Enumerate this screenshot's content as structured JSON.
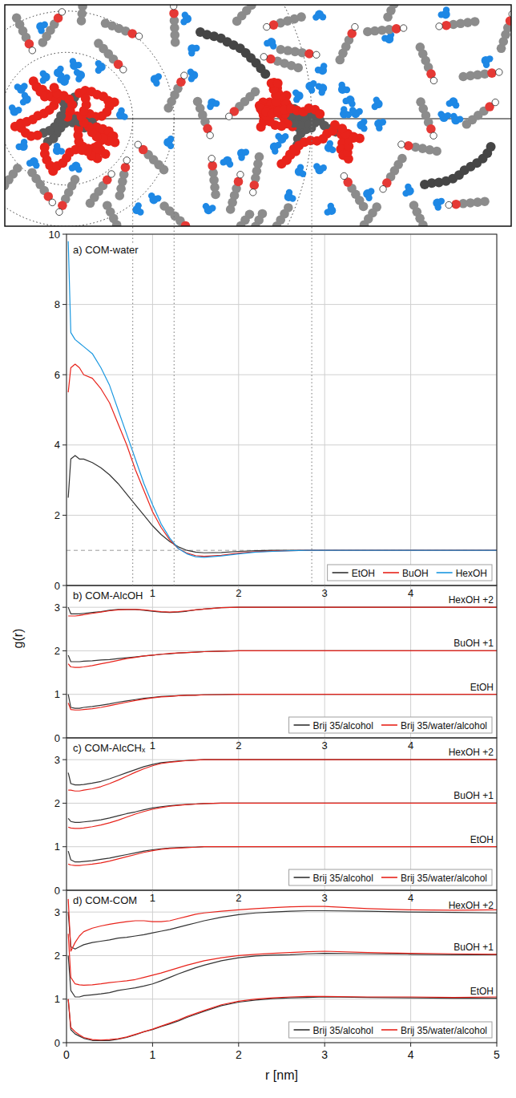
{
  "chart_data": {
    "type": "line",
    "x_label": "r [nm]",
    "y_label": "g(r)",
    "xlim": [
      0,
      5
    ],
    "xticks": [
      0,
      1,
      2,
      3,
      4,
      5
    ],
    "grid": true,
    "guide_lines": [
      0.77,
      1.25,
      2.85
    ],
    "x": [
      0.02,
      0.05,
      0.1,
      0.15,
      0.2,
      0.3,
      0.4,
      0.5,
      0.6,
      0.7,
      0.8,
      0.9,
      1.0,
      1.1,
      1.2,
      1.3,
      1.4,
      1.5,
      1.6,
      1.8,
      2.0,
      2.2,
      2.4,
      2.6,
      2.8,
      3.0,
      3.5,
      4.0,
      4.5,
      5.0
    ],
    "panels": [
      {
        "title": "a) COM-water",
        "ylim": [
          0,
          10
        ],
        "yticks": [
          0,
          2,
          4,
          6,
          8,
          10
        ],
        "reference_y": 1,
        "legend": "bottom-right",
        "series": [
          {
            "name": "EtOH",
            "color": "#333333",
            "values": [
              2.5,
              3.6,
              3.7,
              3.6,
              3.6,
              3.5,
              3.35,
              3.15,
              2.9,
              2.6,
              2.3,
              2.0,
              1.7,
              1.45,
              1.25,
              1.1,
              1.0,
              0.95,
              0.93,
              0.94,
              0.97,
              0.99,
              1.0,
              1.0,
              1.0,
              1.0,
              1.0,
              1.0,
              1.0,
              1.0
            ]
          },
          {
            "name": "BuOH",
            "color": "#e8231b",
            "values": [
              5.5,
              6.2,
              6.3,
              6.2,
              6.0,
              5.9,
              5.6,
              5.2,
              4.6,
              4.0,
              3.3,
              2.7,
              2.1,
              1.65,
              1.3,
              1.05,
              0.92,
              0.85,
              0.83,
              0.86,
              0.92,
              0.96,
              0.98,
              0.99,
              1.0,
              1.0,
              1.0,
              1.0,
              1.0,
              1.0
            ]
          },
          {
            "name": "HexOH",
            "color": "#1b98e0",
            "values": [
              9.8,
              7.2,
              7.0,
              6.9,
              6.8,
              6.6,
              6.2,
              5.7,
              5.0,
              4.3,
              3.6,
              2.9,
              2.3,
              1.75,
              1.35,
              1.05,
              0.9,
              0.82,
              0.8,
              0.84,
              0.9,
              0.95,
              0.97,
              0.99,
              1.0,
              1.0,
              1.0,
              1.0,
              1.0,
              1.0
            ]
          }
        ]
      },
      {
        "title": "b) COM-AlcOH",
        "ylim": [
          0,
          3.5
        ],
        "yticks": [
          0,
          1,
          2,
          3
        ],
        "xticks": [
          1,
          2,
          3,
          4
        ],
        "legend": "bottom-right",
        "annotations": [
          "EtOH",
          "BuOH +1",
          "HexOH +2"
        ],
        "series": [
          {
            "name": "Brij 35/alcohol",
            "color": "#333333",
            "values": [
              1.0,
              0.7,
              0.68,
              0.68,
              0.7,
              0.72,
              0.75,
              0.78,
              0.82,
              0.85,
              0.88,
              0.91,
              0.93,
              0.95,
              0.96,
              0.97,
              0.98,
              0.985,
              0.99,
              0.995,
              1.0,
              1.0,
              1.0,
              1.0,
              1.0,
              1.0,
              1.0,
              1.0,
              1.0,
              1.0
            ]
          },
          {
            "name": "Brij 35/water/alcohol",
            "color": "#e8231b",
            "values": [
              0.8,
              0.65,
              0.64,
              0.64,
              0.65,
              0.67,
              0.7,
              0.74,
              0.78,
              0.82,
              0.86,
              0.89,
              0.92,
              0.94,
              0.95,
              0.97,
              0.98,
              0.98,
              0.99,
              0.995,
              1.0,
              1.0,
              1.0,
              1.0,
              1.0,
              1.0,
              1.0,
              1.0,
              1.0,
              1.0
            ]
          },
          {
            "name": "Brij 35/alcohol",
            "color": "#333333",
            "values": [
              1.9,
              1.75,
              1.75,
              1.75,
              1.76,
              1.77,
              1.79,
              1.8,
              1.82,
              1.84,
              1.86,
              1.88,
              1.9,
              1.92,
              1.93,
              1.95,
              1.96,
              1.97,
              1.98,
              1.99,
              2.0,
              2.0,
              2.0,
              2.0,
              2.0,
              2.0,
              2.0,
              2.0,
              2.0,
              2.0
            ]
          },
          {
            "name": "Brij 35/water/alcohol",
            "color": "#e8231b",
            "values": [
              1.7,
              1.63,
              1.62,
              1.62,
              1.63,
              1.66,
              1.7,
              1.74,
              1.78,
              1.82,
              1.85,
              1.88,
              1.9,
              1.92,
              1.94,
              1.95,
              1.96,
              1.97,
              1.98,
              1.99,
              2.0,
              2.0,
              2.0,
              2.0,
              2.0,
              2.0,
              2.0,
              2.0,
              2.0,
              2.0
            ]
          },
          {
            "name": "Brij 35/alcohol",
            "color": "#333333",
            "values": [
              3.0,
              2.85,
              2.85,
              2.85,
              2.86,
              2.88,
              2.9,
              2.93,
              2.95,
              2.95,
              2.95,
              2.93,
              2.91,
              2.89,
              2.88,
              2.89,
              2.91,
              2.94,
              2.96,
              2.99,
              3.0,
              3.0,
              3.0,
              3.0,
              3.0,
              3.0,
              3.0,
              3.0,
              3.0,
              3.0
            ]
          },
          {
            "name": "Brij 35/water/alcohol",
            "color": "#e8231b",
            "values": [
              2.8,
              2.8,
              2.8,
              2.81,
              2.83,
              2.86,
              2.89,
              2.92,
              2.94,
              2.95,
              2.95,
              2.94,
              2.92,
              2.9,
              2.89,
              2.9,
              2.92,
              2.94,
              2.96,
              2.99,
              3.0,
              3.0,
              3.0,
              3.0,
              3.0,
              3.0,
              3.0,
              3.0,
              3.0,
              3.0
            ]
          }
        ]
      },
      {
        "title": "c) COM-AlcCHₓ",
        "ylim": [
          0,
          3.5
        ],
        "yticks": [
          0,
          1,
          2,
          3
        ],
        "xticks": [
          1,
          2,
          3,
          4
        ],
        "legend": "bottom-right",
        "annotations": [
          "EtOH",
          "BuOH +1",
          "HexOH +2"
        ],
        "series": [
          {
            "name": "Brij 35/alcohol",
            "color": "#333333",
            "values": [
              0.9,
              0.7,
              0.65,
              0.65,
              0.66,
              0.68,
              0.71,
              0.74,
              0.78,
              0.82,
              0.86,
              0.9,
              0.93,
              0.95,
              0.97,
              0.98,
              0.99,
              0.99,
              1.0,
              1.0,
              1.0,
              1.0,
              1.0,
              1.0,
              1.0,
              1.0,
              1.0,
              1.0,
              1.0,
              1.0
            ]
          },
          {
            "name": "Brij 35/water/alcohol",
            "color": "#e8231b",
            "values": [
              0.6,
              0.58,
              0.57,
              0.57,
              0.58,
              0.6,
              0.63,
              0.67,
              0.72,
              0.77,
              0.82,
              0.87,
              0.91,
              0.94,
              0.96,
              0.97,
              0.98,
              0.99,
              1.0,
              1.0,
              1.0,
              1.0,
              1.0,
              1.0,
              1.0,
              1.0,
              1.0,
              1.0,
              1.0,
              1.0
            ]
          },
          {
            "name": "Brij 35/alcohol",
            "color": "#333333",
            "values": [
              1.65,
              1.58,
              1.56,
              1.56,
              1.57,
              1.59,
              1.62,
              1.66,
              1.71,
              1.76,
              1.8,
              1.85,
              1.89,
              1.92,
              1.94,
              1.96,
              1.97,
              1.98,
              1.99,
              2.0,
              2.0,
              2.0,
              2.0,
              2.0,
              2.0,
              2.0,
              2.0,
              2.0,
              2.0,
              2.0
            ]
          },
          {
            "name": "Brij 35/water/alcohol",
            "color": "#e8231b",
            "values": [
              1.45,
              1.43,
              1.42,
              1.42,
              1.43,
              1.46,
              1.5,
              1.55,
              1.61,
              1.68,
              1.75,
              1.81,
              1.86,
              1.9,
              1.93,
              1.95,
              1.97,
              1.98,
              1.99,
              2.0,
              2.0,
              2.0,
              2.0,
              2.0,
              2.0,
              2.0,
              2.0,
              2.0,
              2.0,
              2.0
            ]
          },
          {
            "name": "Brij 35/alcohol",
            "color": "#333333",
            "values": [
              2.7,
              2.45,
              2.42,
              2.42,
              2.43,
              2.46,
              2.5,
              2.56,
              2.63,
              2.7,
              2.77,
              2.84,
              2.89,
              2.93,
              2.95,
              2.97,
              2.98,
              2.99,
              3.0,
              3.0,
              3.0,
              3.0,
              3.0,
              3.0,
              3.0,
              3.0,
              3.0,
              3.0,
              3.0,
              3.0
            ]
          },
          {
            "name": "Brij 35/water/alcohol",
            "color": "#e8231b",
            "values": [
              2.3,
              2.3,
              2.28,
              2.28,
              2.3,
              2.33,
              2.38,
              2.45,
              2.53,
              2.62,
              2.71,
              2.79,
              2.86,
              2.91,
              2.94,
              2.96,
              2.98,
              2.99,
              3.0,
              3.0,
              3.0,
              3.0,
              3.0,
              3.0,
              3.0,
              3.0,
              3.0,
              3.0,
              3.0,
              3.0
            ]
          }
        ]
      },
      {
        "title": "d) COM-COM",
        "ylim": [
          0,
          3.5
        ],
        "yticks": [
          0,
          1,
          2,
          3
        ],
        "xticks": [
          1,
          2,
          3,
          4
        ],
        "legend": "bottom-right",
        "annotations": [
          "EtOH",
          "BuOH +1",
          "HexOH +2"
        ],
        "series": [
          {
            "name": "Brij 35/alcohol",
            "color": "#333333",
            "values": [
              1.0,
              0.3,
              0.2,
              0.15,
              0.1,
              0.05,
              0.05,
              0.05,
              0.08,
              0.12,
              0.18,
              0.25,
              0.3,
              0.37,
              0.43,
              0.5,
              0.58,
              0.65,
              0.72,
              0.85,
              0.93,
              0.98,
              1.01,
              1.03,
              1.04,
              1.05,
              1.04,
              1.03,
              1.02,
              1.02
            ]
          },
          {
            "name": "Brij 35/water/alcohol",
            "color": "#e8231b",
            "values": [
              1.0,
              0.35,
              0.25,
              0.18,
              0.12,
              0.07,
              0.06,
              0.07,
              0.09,
              0.13,
              0.19,
              0.25,
              0.31,
              0.38,
              0.45,
              0.52,
              0.6,
              0.67,
              0.74,
              0.87,
              0.95,
              1.0,
              1.03,
              1.05,
              1.06,
              1.06,
              1.05,
              1.05,
              1.04,
              1.05
            ]
          },
          {
            "name": "Brij 35/alcohol",
            "color": "#333333",
            "values": [
              2.0,
              1.2,
              1.05,
              1.05,
              1.08,
              1.1,
              1.12,
              1.15,
              1.2,
              1.23,
              1.26,
              1.3,
              1.35,
              1.42,
              1.5,
              1.58,
              1.65,
              1.72,
              1.78,
              1.88,
              1.95,
              1.99,
              2.01,
              2.02,
              2.04,
              2.05,
              2.04,
              2.03,
              2.02,
              2.02
            ]
          },
          {
            "name": "Brij 35/water/alcohol",
            "color": "#e8231b",
            "values": [
              2.5,
              1.5,
              1.35,
              1.33,
              1.32,
              1.33,
              1.35,
              1.38,
              1.4,
              1.42,
              1.45,
              1.5,
              1.55,
              1.6,
              1.66,
              1.72,
              1.78,
              1.83,
              1.88,
              1.95,
              2.0,
              2.03,
              2.05,
              2.07,
              2.09,
              2.1,
              2.07,
              2.05,
              2.04,
              2.03
            ]
          },
          {
            "name": "Brij 35/alcohol",
            "color": "#333333",
            "values": [
              3.0,
              2.2,
              2.15,
              2.2,
              2.25,
              2.3,
              2.33,
              2.36,
              2.4,
              2.42,
              2.45,
              2.48,
              2.52,
              2.56,
              2.6,
              2.65,
              2.7,
              2.75,
              2.8,
              2.88,
              2.94,
              2.98,
              3.0,
              3.02,
              3.03,
              3.03,
              3.02,
              3.0,
              2.99,
              2.98
            ]
          },
          {
            "name": "Brij 35/water/alcohol",
            "color": "#e8231b",
            "values": [
              3.3,
              2.1,
              2.3,
              2.45,
              2.55,
              2.63,
              2.68,
              2.72,
              2.75,
              2.78,
              2.8,
              2.8,
              2.78,
              2.78,
              2.8,
              2.85,
              2.9,
              2.95,
              2.98,
              3.02,
              3.05,
              3.08,
              3.1,
              3.12,
              3.13,
              3.13,
              3.08,
              3.05,
              3.04,
              3.05
            ]
          }
        ]
      }
    ]
  }
}
